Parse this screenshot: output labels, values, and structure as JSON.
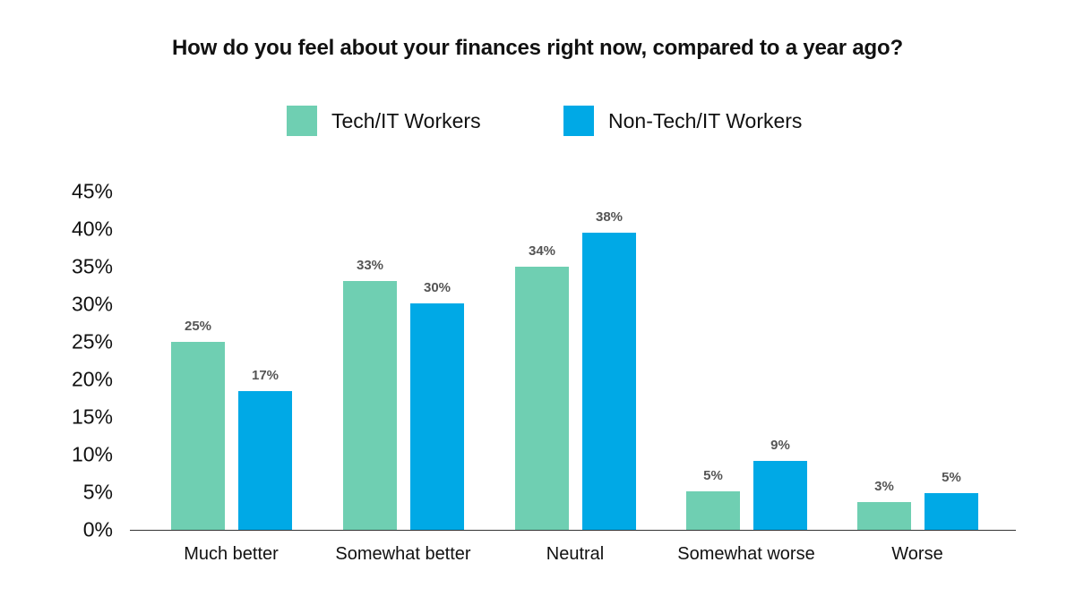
{
  "chart_data": {
    "type": "bar",
    "title": "How do you feel about your finances right now, compared to a year ago?",
    "xlabel": "",
    "ylabel": "",
    "ylim": [
      0,
      45
    ],
    "y_ticks": [
      "0%",
      "5%",
      "10%",
      "15%",
      "20%",
      "25%",
      "30%",
      "35%",
      "40%",
      "45%"
    ],
    "grid": false,
    "legend_position": "top",
    "categories": [
      "Much better",
      "Somewhat better",
      "Neutral",
      "Somewhat worse",
      "Worse"
    ],
    "series": [
      {
        "name": "Tech/IT Workers",
        "color": "#6fcfb2",
        "values": [
          25,
          33,
          34,
          5,
          3
        ],
        "labels": [
          "25%",
          "33%",
          "34%",
          "5%",
          "3%"
        ],
        "drawn_values": [
          25,
          33.1,
          35,
          5.1,
          3.7
        ]
      },
      {
        "name": "Non-Tech/IT Workers",
        "color": "#00a9e6",
        "values": [
          17,
          30,
          38,
          9,
          5
        ],
        "labels": [
          "17%",
          "30%",
          "38%",
          "9%",
          "5%"
        ],
        "drawn_values": [
          18.5,
          30.1,
          39.5,
          9.2,
          4.9
        ]
      }
    ]
  },
  "legend": {
    "items": [
      {
        "label": "Tech/IT Workers",
        "color": "#6fcfb2"
      },
      {
        "label": "Non-Tech/IT Workers",
        "color": "#00a9e6"
      }
    ]
  }
}
